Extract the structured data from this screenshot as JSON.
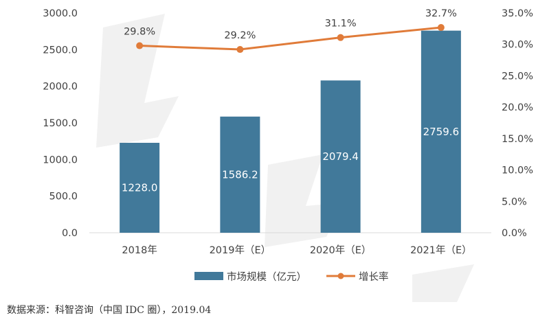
{
  "chart_data": {
    "type": "bar",
    "categories": [
      "2018年",
      "2019年（E）",
      "2020年（E）",
      "2021年（E）"
    ],
    "series": [
      {
        "name": "市场规模（亿元）",
        "type": "bar",
        "axis": "left",
        "values": [
          1228.0,
          1586.2,
          2079.4,
          2759.6
        ],
        "labels": [
          "1228.0",
          "1586.2",
          "2079.4",
          "2759.6"
        ]
      },
      {
        "name": "增长率",
        "type": "line",
        "axis": "right",
        "values": [
          29.8,
          29.2,
          31.1,
          32.7
        ],
        "labels": [
          "29.8%",
          "29.2%",
          "31.1%",
          "32.7%"
        ]
      }
    ],
    "ylim": [
      0,
      3000
    ],
    "y2lim": [
      0,
      35
    ],
    "yticks": [
      "0.0",
      "500.0",
      "1000.0",
      "1500.0",
      "2000.0",
      "2500.0",
      "3000.0"
    ],
    "y2ticks": [
      "0.0%",
      "5.0%",
      "10.0%",
      "15.0%",
      "20.0%",
      "25.0%",
      "30.0%",
      "35.0%"
    ],
    "grid": false,
    "legend": "bottom",
    "colors": {
      "bar": "#41799A",
      "line": "#E07B39"
    }
  },
  "source": "数据来源：科智咨询（中国 IDC 圈），2019.04"
}
